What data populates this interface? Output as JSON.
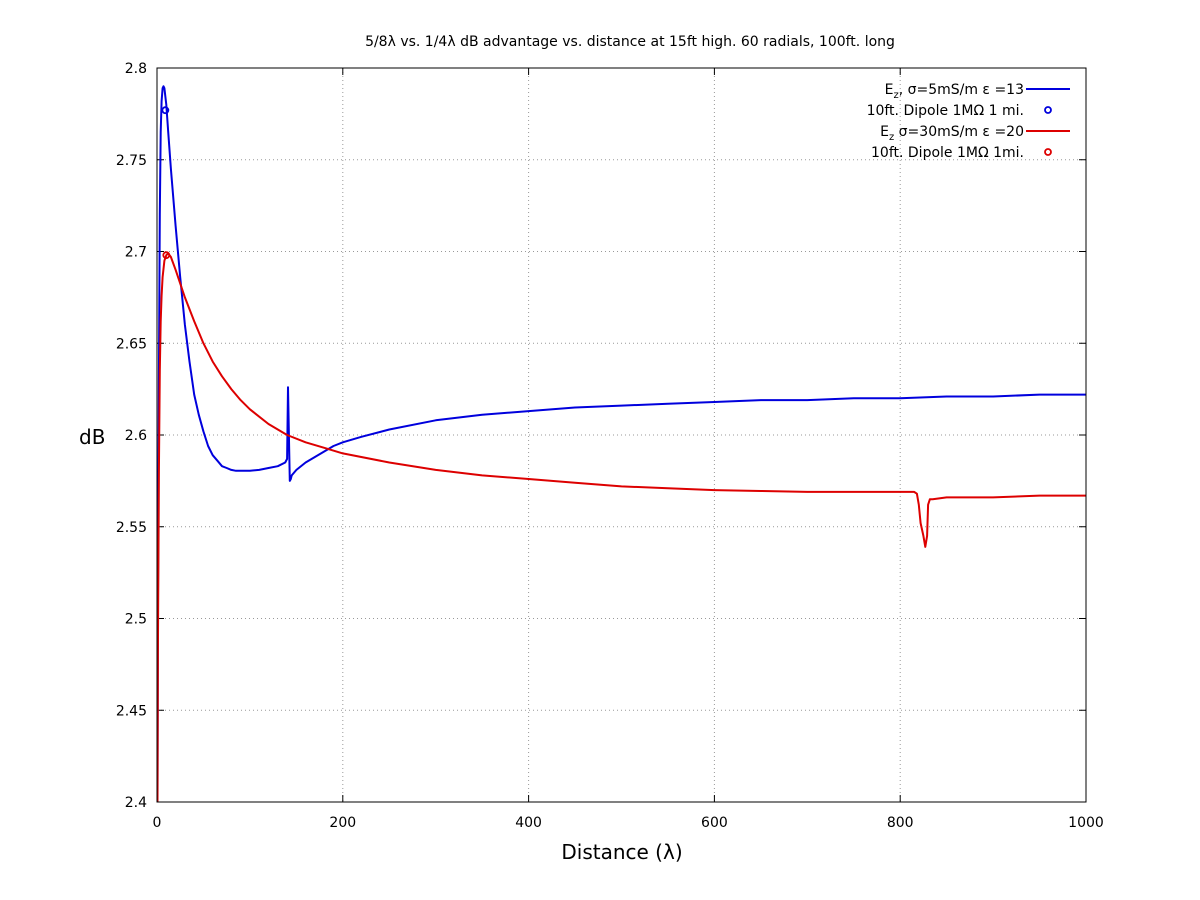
{
  "chart_data": {
    "type": "line",
    "title": "5/8λ vs. 1/4λ dB advantage vs. distance at 15ft high.  60 radials, 100ft. long",
    "xlabel": "Distance (λ)",
    "ylabel": "dB",
    "xlim": [
      0,
      1000
    ],
    "ylim": [
      2.4,
      2.8
    ],
    "xticks": [
      "0",
      "200",
      "400",
      "600",
      "800",
      "1000"
    ],
    "yticks": [
      "2.4",
      "2.45",
      "2.5",
      "2.55",
      "2.6",
      "2.65",
      "2.7",
      "2.75",
      "2.8"
    ],
    "grid": true,
    "legend_position": "top-right",
    "series": [
      {
        "name_main": "E",
        "name_sub": "z",
        "name_rest": ", σ=5mS/m ε =13",
        "style": "line",
        "color": "#0000dd",
        "x": [
          0.5,
          1,
          2,
          3,
          4,
          5,
          6,
          7,
          8,
          10,
          12,
          15,
          20,
          25,
          30,
          35,
          40,
          45,
          50,
          55,
          60,
          65,
          70,
          75,
          80,
          85,
          90,
          100,
          110,
          120,
          130,
          138,
          140,
          141,
          142,
          143,
          144,
          145,
          150,
          160,
          170,
          180,
          190,
          200,
          220,
          250,
          300,
          350,
          400,
          450,
          500,
          550,
          600,
          650,
          700,
          750,
          800,
          850,
          900,
          950,
          1000
        ],
        "y": [
          2.4,
          2.5,
          2.63,
          2.72,
          2.765,
          2.782,
          2.789,
          2.79,
          2.789,
          2.78,
          2.766,
          2.745,
          2.714,
          2.686,
          2.66,
          2.64,
          2.622,
          2.611,
          2.602,
          2.594,
          2.589,
          2.586,
          2.583,
          2.582,
          2.581,
          2.5805,
          2.5805,
          2.5805,
          2.581,
          2.582,
          2.583,
          2.585,
          2.587,
          2.626,
          2.6,
          2.575,
          2.576,
          2.578,
          2.581,
          2.585,
          2.588,
          2.591,
          2.594,
          2.596,
          2.599,
          2.603,
          2.608,
          2.611,
          2.613,
          2.615,
          2.616,
          2.617,
          2.618,
          2.619,
          2.619,
          2.62,
          2.62,
          2.621,
          2.621,
          2.622,
          2.622
        ]
      },
      {
        "name": "10ft. Dipole 1MΩ 1 mi.",
        "style": "marker",
        "color": "#0000dd",
        "x": [
          9
        ],
        "y": [
          2.777
        ]
      },
      {
        "name_main": "E",
        "name_sub": "z",
        "name_rest": " σ=30mS/m ε =20",
        "style": "line",
        "color": "#dd0000",
        "x": [
          0.5,
          1,
          2,
          3,
          4,
          5,
          6,
          8,
          10,
          12,
          15,
          20,
          30,
          40,
          50,
          60,
          70,
          80,
          90,
          100,
          120,
          140,
          160,
          180,
          200,
          250,
          300,
          350,
          400,
          450,
          500,
          550,
          600,
          650,
          700,
          750,
          800,
          815,
          818,
          820,
          822,
          825,
          827,
          829,
          830,
          832,
          835,
          850,
          900,
          950,
          1000
        ],
        "y": [
          2.4,
          2.48,
          2.58,
          2.635,
          2.662,
          2.676,
          2.686,
          2.695,
          2.698,
          2.699,
          2.697,
          2.69,
          2.675,
          2.662,
          2.65,
          2.64,
          2.632,
          2.625,
          2.619,
          2.614,
          2.606,
          2.6,
          2.596,
          2.593,
          2.59,
          2.585,
          2.581,
          2.578,
          2.576,
          2.574,
          2.572,
          2.571,
          2.57,
          2.5695,
          2.569,
          2.569,
          2.569,
          2.569,
          2.568,
          2.562,
          2.552,
          2.545,
          2.539,
          2.545,
          2.562,
          2.565,
          2.565,
          2.566,
          2.566,
          2.567,
          2.567
        ]
      },
      {
        "name": "10ft. Dipole 1MΩ 1mi.",
        "style": "marker",
        "color": "#dd0000",
        "x": [
          10
        ],
        "y": [
          2.698
        ]
      }
    ]
  }
}
